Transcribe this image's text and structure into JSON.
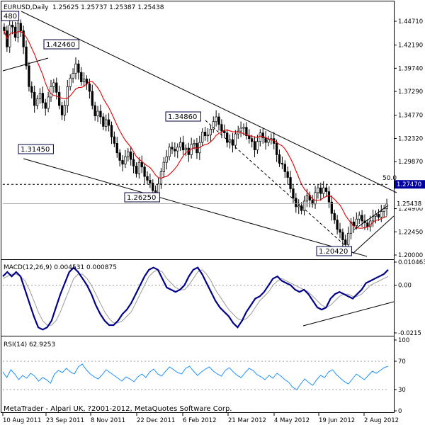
{
  "header": {
    "symbol_title": "EURUSD,Daily",
    "ohlc": "1.25625 1.25737 1.25387 1.25438"
  },
  "footer": {
    "copyright": "MetaTrader - Alpari UK, ?2001-2012, MetaQuotes Software Corp."
  },
  "x_labels": [
    "10 Aug 2011",
    "23 Sep 2011",
    "8 Nov 2011",
    "22 Dec 2011",
    "6 Feb 2012",
    "21 Mar 2012",
    "4 May 2012",
    "19 Jun 2012",
    "2 Aug 2012"
  ],
  "chart_data": [
    {
      "type": "candlestick",
      "title": "EURUSD,Daily",
      "y_ticks": [
        "1.44710",
        "1.42190",
        "1.39740",
        "1.37290",
        "1.34770",
        "1.32320",
        "1.29870",
        "1.27470",
        "1.24900",
        "1.22450",
        "1.20000"
      ],
      "ylim": [
        1.2,
        1.4471
      ],
      "price_labels": [
        "1.27470",
        "1.25438"
      ],
      "annotations": [
        {
          "text": "480",
          "price": 1.448
        },
        {
          "text": "1.42460",
          "price": 1.4246
        },
        {
          "text": "1.31450",
          "price": 1.3145
        },
        {
          "text": "1.34860",
          "price": 1.3486
        },
        {
          "text": "1.26250",
          "price": 1.2625
        },
        {
          "text": "1.20420",
          "price": 1.2042
        },
        {
          "text": "50.0",
          "price": 1.2747
        }
      ],
      "horizontal_lines": [
        1.2747,
        1.25438
      ],
      "close_series": [
        1.437,
        1.42,
        1.443,
        1.441,
        1.43,
        1.445,
        1.437,
        1.42,
        1.4,
        1.378,
        1.372,
        1.358,
        1.365,
        1.371,
        1.361,
        1.355,
        1.367,
        1.378,
        1.382,
        1.372,
        1.358,
        1.348,
        1.358,
        1.378,
        1.387,
        1.392,
        1.402,
        1.393,
        1.383,
        1.386,
        1.381,
        1.373,
        1.358,
        1.347,
        1.352,
        1.346,
        1.336,
        1.343,
        1.337,
        1.325,
        1.318,
        1.308,
        1.3,
        1.296,
        1.304,
        1.309,
        1.301,
        1.294,
        1.286,
        1.298,
        1.293,
        1.283,
        1.279,
        1.276,
        1.268,
        1.266,
        1.275,
        1.288,
        1.298,
        1.304,
        1.314,
        1.312,
        1.31,
        1.314,
        1.319,
        1.311,
        1.313,
        1.306,
        1.317,
        1.318,
        1.308,
        1.319,
        1.33,
        1.326,
        1.327,
        1.333,
        1.341,
        1.346,
        1.338,
        1.331,
        1.329,
        1.319,
        1.322,
        1.316,
        1.328,
        1.331,
        1.334,
        1.335,
        1.326,
        1.323,
        1.32,
        1.311,
        1.32,
        1.329,
        1.324,
        1.319,
        1.322,
        1.323,
        1.318,
        1.306,
        1.297,
        1.296,
        1.288,
        1.282,
        1.27,
        1.26,
        1.251,
        1.252,
        1.247,
        1.257,
        1.263,
        1.258,
        1.254,
        1.266,
        1.271,
        1.265,
        1.271,
        1.267,
        1.256,
        1.244,
        1.237,
        1.227,
        1.224,
        1.216,
        1.211,
        1.223,
        1.235,
        1.231,
        1.238,
        1.242,
        1.236,
        1.234,
        1.23,
        1.236,
        1.241,
        1.243,
        1.24,
        1.246,
        1.249,
        1.254
      ]
    },
    {
      "type": "line",
      "title": "MACD(12,26,9) 0.004531 0.000875",
      "y_ticks": [
        "0.010463",
        "0.00",
        "-0.0215"
      ],
      "ylim": [
        -0.0215,
        0.010463
      ],
      "series": [
        {
          "name": "MACD",
          "values": [
            0.004,
            0.006,
            0.004,
            0.006,
            0.004,
            -0.002,
            -0.008,
            -0.014,
            -0.019,
            -0.02,
            -0.019,
            -0.016,
            -0.01,
            -0.004,
            0.001,
            0.006,
            0.008,
            0.006,
            0.003,
            0.0,
            -0.004,
            -0.009,
            -0.013,
            -0.016,
            -0.018,
            -0.018,
            -0.016,
            -0.013,
            -0.011,
            -0.008,
            -0.004,
            0.0,
            0.004,
            0.007,
            0.008,
            0.007,
            0.003,
            -0.001,
            -0.002,
            -0.003,
            -0.002,
            0.0,
            0.004,
            0.007,
            0.008,
            0.005,
            0.001,
            -0.003,
            -0.007,
            -0.01,
            -0.012,
            -0.014,
            -0.017,
            -0.019,
            -0.016,
            -0.012,
            -0.009,
            -0.006,
            -0.005,
            -0.003,
            0.0,
            0.003,
            0.004,
            0.002,
            0.001,
            0.0,
            -0.002,
            -0.003,
            -0.002,
            -0.004,
            -0.007,
            -0.01,
            -0.011,
            -0.01,
            -0.006,
            -0.004,
            -0.003,
            -0.004,
            -0.005,
            -0.006,
            -0.004,
            -0.002,
            0.001,
            0.002,
            0.003,
            0.004,
            0.005,
            0.007
          ]
        },
        {
          "name": "Signal",
          "values": [
            0.003,
            0.004,
            0.005,
            0.005,
            0.004,
            0.002,
            -0.002,
            -0.007,
            -0.012,
            -0.016,
            -0.018,
            -0.018,
            -0.016,
            -0.012,
            -0.007,
            -0.002,
            0.003,
            0.005,
            0.005,
            0.003,
            0.0,
            -0.004,
            -0.008,
            -0.012,
            -0.015,
            -0.017,
            -0.017,
            -0.016,
            -0.014,
            -0.012,
            -0.008,
            -0.004,
            0.0,
            0.004,
            0.006,
            0.007,
            0.006,
            0.003,
            0.001,
            -0.001,
            -0.002,
            -0.002,
            0.0,
            0.003,
            0.006,
            0.007,
            0.005,
            0.002,
            -0.002,
            -0.005,
            -0.008,
            -0.011,
            -0.013,
            -0.015,
            -0.016,
            -0.015,
            -0.013,
            -0.01,
            -0.007,
            -0.005,
            -0.003,
            0.0,
            0.002,
            0.003,
            0.002,
            0.001,
            0.0,
            -0.001,
            -0.002,
            -0.003,
            -0.005,
            -0.007,
            -0.009,
            -0.01,
            -0.009,
            -0.007,
            -0.005,
            -0.004,
            -0.004,
            -0.005,
            -0.005,
            -0.004,
            -0.002,
            0.0,
            0.001,
            0.002,
            0.003,
            0.004
          ]
        }
      ]
    },
    {
      "type": "line",
      "title": "RSI(14) 62.9253",
      "y_ticks": [
        "100",
        "70",
        "30",
        "0"
      ],
      "ylim": [
        0,
        100
      ],
      "series": [
        {
          "name": "RSI",
          "values": [
            55,
            47,
            58,
            52,
            44,
            50,
            46,
            53,
            49,
            42,
            47,
            44,
            39,
            52,
            57,
            54,
            60,
            55,
            52,
            62,
            66,
            58,
            52,
            48,
            45,
            51,
            58,
            54,
            50,
            46,
            42,
            48,
            45,
            41,
            48,
            52,
            47,
            55,
            59,
            52,
            49,
            56,
            62,
            58,
            54,
            52,
            60,
            63,
            56,
            50,
            55,
            59,
            62,
            56,
            52,
            49,
            57,
            61,
            55,
            50,
            47,
            54,
            60,
            57,
            51,
            48,
            44,
            50,
            46,
            53,
            49,
            44,
            40,
            33,
            30,
            38,
            45,
            40,
            36,
            44,
            50,
            47,
            55,
            58,
            51,
            46,
            41,
            38,
            45,
            52,
            48,
            44,
            50,
            56,
            53,
            57,
            61,
            63
          ]
        }
      ]
    }
  ]
}
